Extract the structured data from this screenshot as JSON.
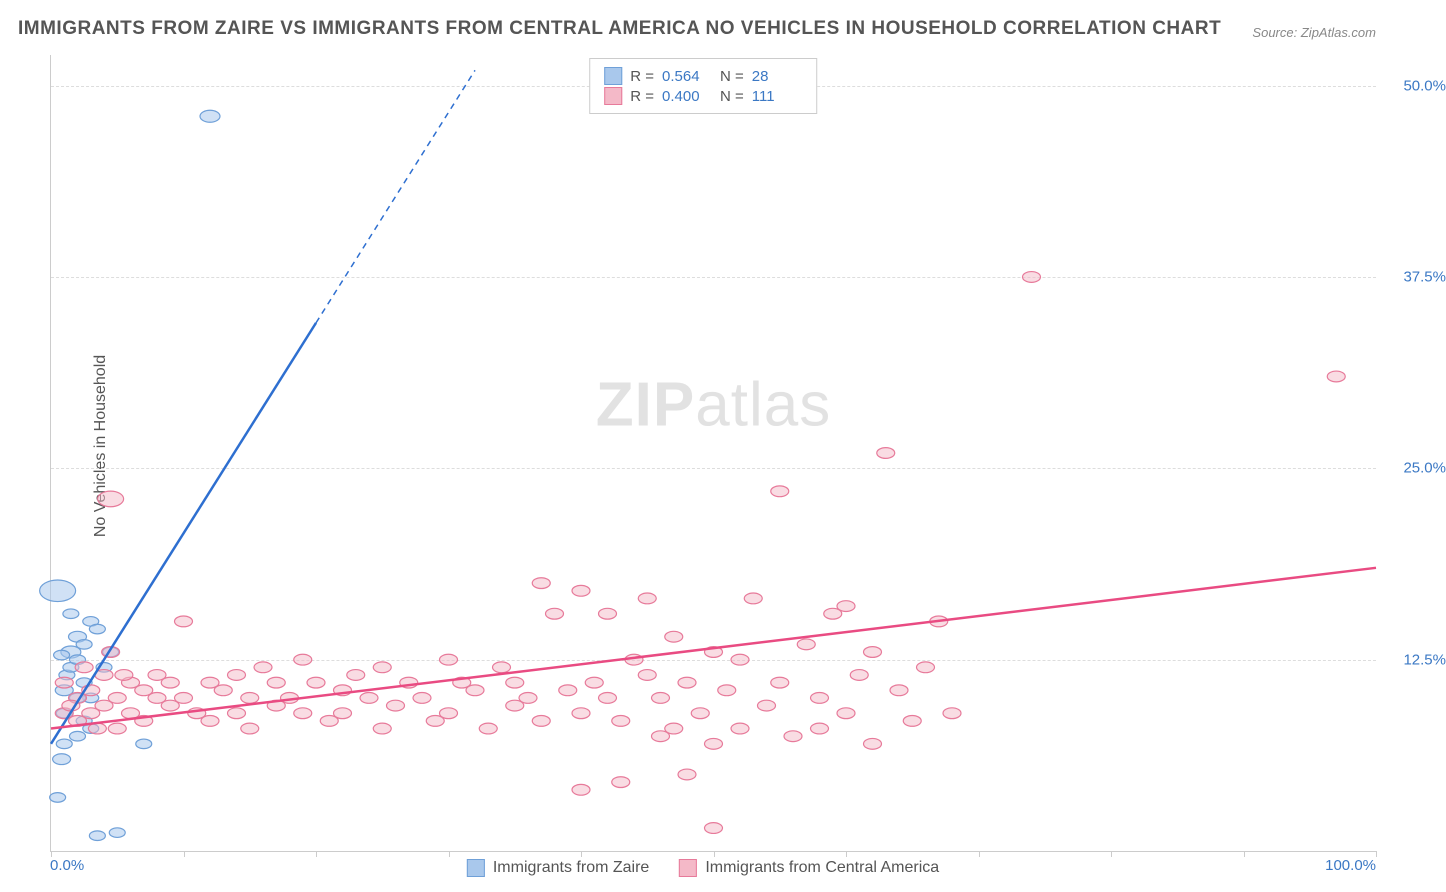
{
  "title": "IMMIGRANTS FROM ZAIRE VS IMMIGRANTS FROM CENTRAL AMERICA NO VEHICLES IN HOUSEHOLD CORRELATION CHART",
  "source_label": "Source:",
  "source_value": "ZipAtlas.com",
  "ylabel": "No Vehicles in Household",
  "watermark_a": "ZIP",
  "watermark_b": "atlas",
  "chart": {
    "type": "scatter",
    "xlim": [
      0,
      100
    ],
    "ylim": [
      0,
      52
    ],
    "xlabel_min": "0.0%",
    "xlabel_max": "100.0%",
    "yticks": [
      {
        "v": 12.5,
        "label": "12.5%"
      },
      {
        "v": 25.0,
        "label": "25.0%"
      },
      {
        "v": 37.5,
        "label": "37.5%"
      },
      {
        "v": 50.0,
        "label": "50.0%"
      }
    ],
    "xtick_positions": [
      0,
      10,
      20,
      30,
      40,
      50,
      60,
      70,
      80,
      90,
      100
    ],
    "background_color": "#ffffff",
    "grid_color": "#dddddd",
    "series": [
      {
        "name": "Immigrants from Zaire",
        "fill": "#a9c8ec",
        "stroke": "#6fa0d8",
        "line_color": "#2e6fd0",
        "marker_radius": 8,
        "marker_opacity": 0.55,
        "R": "0.564",
        "N": "28",
        "trend": {
          "x1": 0,
          "y1": 7.0,
          "x2_solid": 20,
          "y2_solid": 34.5,
          "x2_dash": 32,
          "y2_dash": 51.0
        },
        "points": [
          {
            "x": 0.5,
            "y": 17.0,
            "r": 18
          },
          {
            "x": 1.0,
            "y": 10.5,
            "r": 9
          },
          {
            "x": 1.2,
            "y": 11.5,
            "r": 8
          },
          {
            "x": 1.0,
            "y": 9.0,
            "r": 8
          },
          {
            "x": 1.5,
            "y": 12.0,
            "r": 8
          },
          {
            "x": 1.5,
            "y": 13.0,
            "r": 10
          },
          {
            "x": 2.0,
            "y": 12.5,
            "r": 8
          },
          {
            "x": 2.0,
            "y": 14.0,
            "r": 9
          },
          {
            "x": 2.5,
            "y": 13.5,
            "r": 8
          },
          {
            "x": 2.5,
            "y": 11.0,
            "r": 8
          },
          {
            "x": 3.0,
            "y": 15.0,
            "r": 8
          },
          {
            "x": 3.0,
            "y": 10.0,
            "r": 8
          },
          {
            "x": 3.5,
            "y": 14.5,
            "r": 8
          },
          {
            "x": 1.0,
            "y": 7.0,
            "r": 8
          },
          {
            "x": 0.8,
            "y": 6.0,
            "r": 9
          },
          {
            "x": 2.0,
            "y": 7.5,
            "r": 8
          },
          {
            "x": 2.5,
            "y": 8.5,
            "r": 8
          },
          {
            "x": 3.0,
            "y": 8.0,
            "r": 8
          },
          {
            "x": 0.5,
            "y": 3.5,
            "r": 8
          },
          {
            "x": 3.5,
            "y": 1.0,
            "r": 8
          },
          {
            "x": 5.0,
            "y": 1.2,
            "r": 8
          },
          {
            "x": 7.0,
            "y": 7.0,
            "r": 8
          },
          {
            "x": 4.0,
            "y": 12.0,
            "r": 8
          },
          {
            "x": 4.5,
            "y": 13.0,
            "r": 8
          },
          {
            "x": 1.5,
            "y": 15.5,
            "r": 8
          },
          {
            "x": 0.8,
            "y": 12.8,
            "r": 8
          },
          {
            "x": 2.0,
            "y": 10.0,
            "r": 8
          },
          {
            "x": 12.0,
            "y": 48.0,
            "r": 10
          }
        ]
      },
      {
        "name": "Immigrants from Central America",
        "fill": "#f4b9c8",
        "stroke": "#e77a9a",
        "line_color": "#e94b82",
        "marker_radius": 9,
        "marker_opacity": 0.5,
        "R": "0.400",
        "N": "111",
        "trend": {
          "x1": 0,
          "y1": 8.0,
          "x2_solid": 100,
          "y2_solid": 18.5,
          "x2_dash": 100,
          "y2_dash": 18.5
        },
        "points": [
          {
            "x": 1,
            "y": 9.0
          },
          {
            "x": 2,
            "y": 10.0
          },
          {
            "x": 2,
            "y": 8.5
          },
          {
            "x": 3,
            "y": 10.5
          },
          {
            "x": 3,
            "y": 9.0
          },
          {
            "x": 4,
            "y": 11.5
          },
          {
            "x": 4,
            "y": 9.5
          },
          {
            "x": 5,
            "y": 10.0
          },
          {
            "x": 5,
            "y": 8.0
          },
          {
            "x": 6,
            "y": 11.0
          },
          {
            "x": 6,
            "y": 9.0
          },
          {
            "x": 7,
            "y": 10.5
          },
          {
            "x": 7,
            "y": 8.5
          },
          {
            "x": 8,
            "y": 11.5
          },
          {
            "x": 8,
            "y": 10.0
          },
          {
            "x": 9,
            "y": 9.5
          },
          {
            "x": 9,
            "y": 11.0
          },
          {
            "x": 10,
            "y": 15.0
          },
          {
            "x": 10,
            "y": 10.0
          },
          {
            "x": 11,
            "y": 9.0
          },
          {
            "x": 12,
            "y": 11.0
          },
          {
            "x": 12,
            "y": 8.5
          },
          {
            "x": 13,
            "y": 10.5
          },
          {
            "x": 14,
            "y": 9.0
          },
          {
            "x": 14,
            "y": 11.5
          },
          {
            "x": 15,
            "y": 10.0
          },
          {
            "x": 15,
            "y": 8.0
          },
          {
            "x": 16,
            "y": 12.0
          },
          {
            "x": 17,
            "y": 9.5
          },
          {
            "x": 17,
            "y": 11.0
          },
          {
            "x": 18,
            "y": 10.0
          },
          {
            "x": 19,
            "y": 12.5
          },
          {
            "x": 19,
            "y": 9.0
          },
          {
            "x": 20,
            "y": 11.0
          },
          {
            "x": 21,
            "y": 8.5
          },
          {
            "x": 22,
            "y": 10.5
          },
          {
            "x": 22,
            "y": 9.0
          },
          {
            "x": 23,
            "y": 11.5
          },
          {
            "x": 24,
            "y": 10.0
          },
          {
            "x": 25,
            "y": 8.0
          },
          {
            "x": 25,
            "y": 12.0
          },
          {
            "x": 26,
            "y": 9.5
          },
          {
            "x": 27,
            "y": 11.0
          },
          {
            "x": 28,
            "y": 10.0
          },
          {
            "x": 29,
            "y": 8.5
          },
          {
            "x": 30,
            "y": 12.5
          },
          {
            "x": 30,
            "y": 9.0
          },
          {
            "x": 31,
            "y": 11.0
          },
          {
            "x": 32,
            "y": 10.5
          },
          {
            "x": 33,
            "y": 8.0
          },
          {
            "x": 34,
            "y": 12.0
          },
          {
            "x": 35,
            "y": 9.5
          },
          {
            "x": 35,
            "y": 11.0
          },
          {
            "x": 36,
            "y": 10.0
          },
          {
            "x": 37,
            "y": 17.5
          },
          {
            "x": 37,
            "y": 8.5
          },
          {
            "x": 38,
            "y": 15.5
          },
          {
            "x": 39,
            "y": 10.5
          },
          {
            "x": 40,
            "y": 17.0
          },
          {
            "x": 40,
            "y": 9.0
          },
          {
            "x": 40,
            "y": 4.0
          },
          {
            "x": 41,
            "y": 11.0
          },
          {
            "x": 42,
            "y": 10.0
          },
          {
            "x": 42,
            "y": 15.5
          },
          {
            "x": 43,
            "y": 8.5
          },
          {
            "x": 43,
            "y": 4.5
          },
          {
            "x": 44,
            "y": 12.5
          },
          {
            "x": 45,
            "y": 11.5
          },
          {
            "x": 45,
            "y": 16.5
          },
          {
            "x": 46,
            "y": 7.5
          },
          {
            "x": 46,
            "y": 10.0
          },
          {
            "x": 47,
            "y": 14.0
          },
          {
            "x": 47,
            "y": 8.0
          },
          {
            "x": 48,
            "y": 11.0
          },
          {
            "x": 48,
            "y": 5.0
          },
          {
            "x": 49,
            "y": 9.0
          },
          {
            "x": 50,
            "y": 13.0
          },
          {
            "x": 50,
            "y": 7.0
          },
          {
            "x": 50,
            "y": 1.5
          },
          {
            "x": 51,
            "y": 10.5
          },
          {
            "x": 52,
            "y": 8.0
          },
          {
            "x": 52,
            "y": 12.5
          },
          {
            "x": 53,
            "y": 16.5
          },
          {
            "x": 54,
            "y": 9.5
          },
          {
            "x": 55,
            "y": 11.0
          },
          {
            "x": 55,
            "y": 23.5
          },
          {
            "x": 56,
            "y": 7.5
          },
          {
            "x": 57,
            "y": 13.5
          },
          {
            "x": 58,
            "y": 10.0
          },
          {
            "x": 58,
            "y": 8.0
          },
          {
            "x": 59,
            "y": 15.5
          },
          {
            "x": 60,
            "y": 9.0
          },
          {
            "x": 60,
            "y": 16.0
          },
          {
            "x": 61,
            "y": 11.5
          },
          {
            "x": 62,
            "y": 7.0
          },
          {
            "x": 62,
            "y": 13.0
          },
          {
            "x": 63,
            "y": 26.0
          },
          {
            "x": 64,
            "y": 10.5
          },
          {
            "x": 65,
            "y": 8.5
          },
          {
            "x": 66,
            "y": 12.0
          },
          {
            "x": 67,
            "y": 15.0
          },
          {
            "x": 68,
            "y": 9.0
          },
          {
            "x": 74,
            "y": 37.5
          },
          {
            "x": 97,
            "y": 31.0
          },
          {
            "x": 4.5,
            "y": 23.0,
            "r": 13
          },
          {
            "x": 1,
            "y": 11.0
          },
          {
            "x": 1.5,
            "y": 9.5
          },
          {
            "x": 2.5,
            "y": 12.0
          },
          {
            "x": 3.5,
            "y": 8.0
          },
          {
            "x": 4.5,
            "y": 13.0
          },
          {
            "x": 5.5,
            "y": 11.5
          }
        ]
      }
    ],
    "stat_legend": {
      "R_label": "R  =",
      "N_label": "N  ="
    }
  }
}
